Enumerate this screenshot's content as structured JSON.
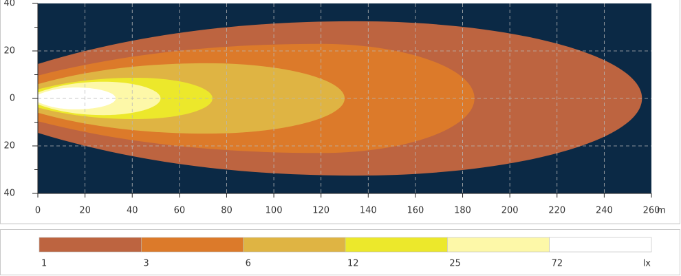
{
  "chart_data": {
    "type": "isolux",
    "x_unit": "m",
    "legend_unit": "lx",
    "xlim": [
      0,
      260
    ],
    "xticks": [
      0,
      20,
      40,
      60,
      80,
      100,
      120,
      140,
      160,
      180,
      200,
      220,
      240,
      260
    ],
    "ylim": [
      -40,
      40
    ],
    "yticks": [
      40,
      20,
      0,
      {
        "value": -20,
        "label": "20"
      },
      {
        "value": -40,
        "label": "40"
      }
    ],
    "yminorticks": [
      30,
      10,
      -10,
      -30
    ],
    "grid": true,
    "background": "#0b2945",
    "contours": [
      {
        "level": 1,
        "color": "#bd6440",
        "x_max": 256,
        "y_max": 32.5,
        "x_at_y_max": 135,
        "y_at_x0": 14.5
      },
      {
        "level": 3,
        "color": "#dc7a2a",
        "x_max": 185,
        "y_max": 23,
        "x_at_y_max": 120,
        "y_at_x0": 9.6
      },
      {
        "level": 6,
        "color": "#dfb443",
        "x_max": 130,
        "y_max": 14.8,
        "x_at_y_max": 72,
        "y_at_x0": 6
      },
      {
        "level": 12,
        "color": "#ece82b",
        "x_max": 74,
        "y_max": 8.7,
        "x_at_y_max": 42,
        "y_at_x0": 3.8
      },
      {
        "level": 25,
        "color": "#fdf8a8",
        "x_max": 52,
        "y_max": 7,
        "x_at_y_max": 28,
        "y_at_x0": 2.5
      },
      {
        "level": 72,
        "color": "#ffffff",
        "x_max": 33,
        "y_max": 4.6,
        "x_at_y_max": 16,
        "y_at_x0": 1.5
      }
    ]
  }
}
